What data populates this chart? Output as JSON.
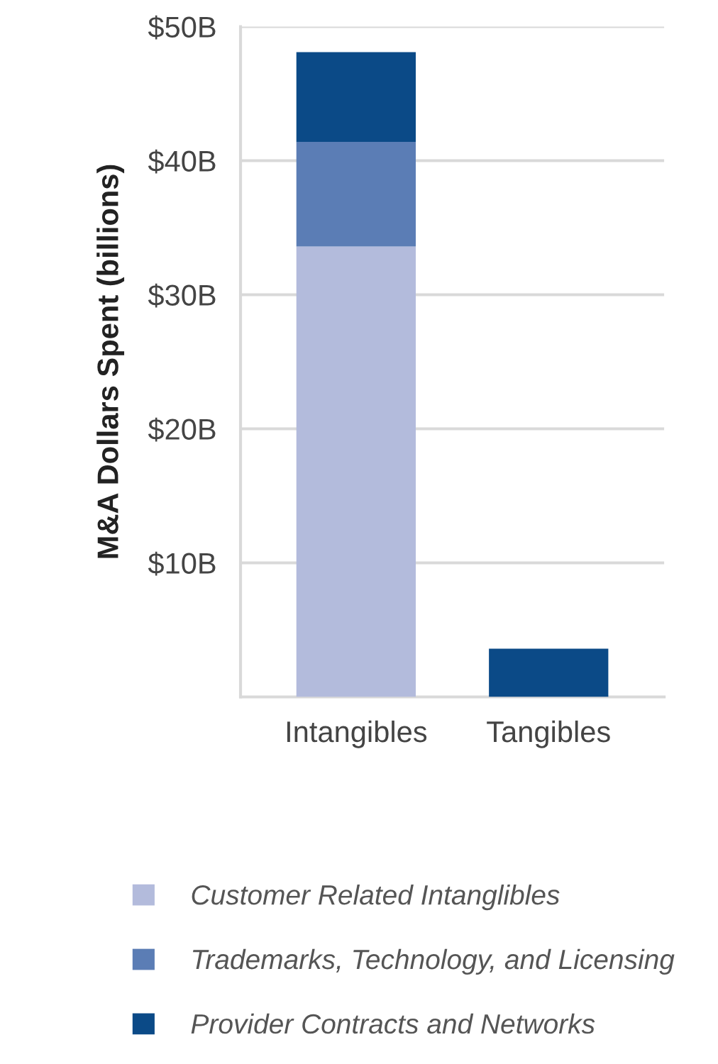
{
  "chart_data": {
    "type": "bar",
    "ylabel": "M&A Dollars Spent (billions)",
    "categories": [
      "Intangibles",
      "Tangibles"
    ],
    "stacked": true,
    "series": [
      {
        "name": "Customer Related Intanglibles",
        "color": "#b3bbdc",
        "values": [
          33.6,
          null
        ]
      },
      {
        "name": "Trademarks, Technology, and Licensing",
        "color": "#5b7db5",
        "values": [
          7.8,
          null
        ]
      },
      {
        "name": "Provider Contracts and Networks",
        "color": "#0b4a87",
        "values": [
          6.7,
          3.6
        ]
      }
    ],
    "ylim": [
      0,
      50
    ],
    "yticks": [
      {
        "value": 10,
        "label": "$10B"
      },
      {
        "value": 20,
        "label": "$20B"
      },
      {
        "value": 30,
        "label": "$30B"
      },
      {
        "value": 40,
        "label": "$40B"
      },
      {
        "value": 50,
        "label": "$50B"
      }
    ],
    "grid": "y",
    "legend": "bottom"
  }
}
